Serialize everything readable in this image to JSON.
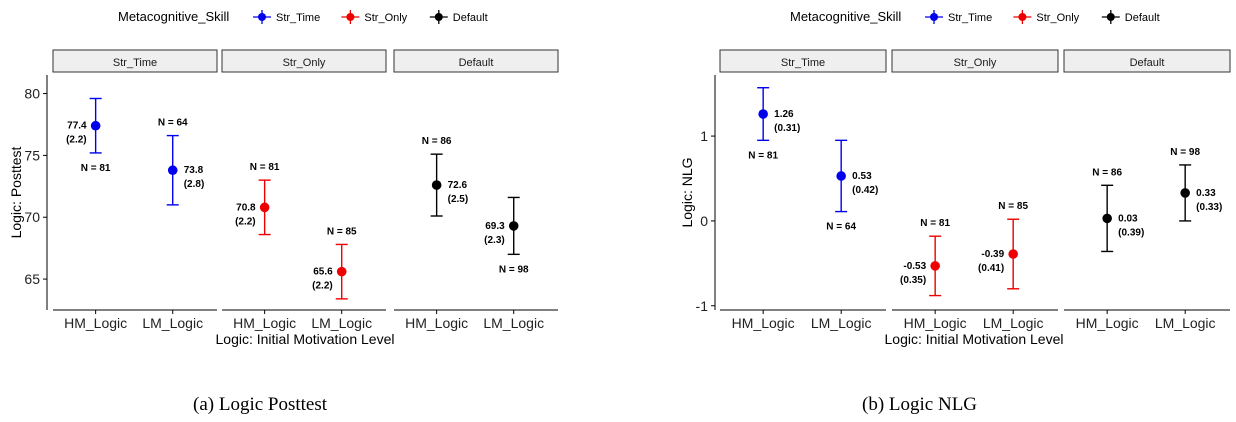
{
  "captions": {
    "left": "(a)  Logic Posttest",
    "right": "(b)  Logic NLG"
  },
  "legend": {
    "title": "Metacognitive_Skill",
    "items": [
      {
        "label": "Str_Time",
        "color": "#0000ee"
      },
      {
        "label": "Str_Only",
        "color": "#ee0000"
      },
      {
        "label": "Default",
        "color": "#000000"
      }
    ]
  },
  "chart_data": [
    {
      "type": "scatter",
      "subtype": "point-with-error-bars, faceted",
      "xlabel": "Logic: Initial Motivation Level",
      "ylabel": "Logic: Posttest",
      "ylim": [
        62.5,
        81.5
      ],
      "yticks": [
        65,
        70,
        75,
        80
      ],
      "facets": [
        {
          "name": "Str_Time",
          "color": "#0000ee",
          "points": [
            {
              "x": "HM_Logic",
              "y": 77.4,
              "lo": 75.2,
              "hi": 79.6,
              "value_label": "77.4",
              "se_label": "(2.2)",
              "n_label": "N = 81",
              "label_side": "left",
              "n_side": "below"
            },
            {
              "x": "LM_Logic",
              "y": 73.8,
              "lo": 71.0,
              "hi": 76.6,
              "value_label": "73.8",
              "se_label": "(2.8)",
              "n_label": "N = 64",
              "label_side": "right",
              "n_side": "above"
            }
          ]
        },
        {
          "name": "Str_Only",
          "color": "#ee0000",
          "points": [
            {
              "x": "HM_Logic",
              "y": 70.8,
              "lo": 68.6,
              "hi": 73.0,
              "value_label": "70.8",
              "se_label": "(2.2)",
              "n_label": "N = 81",
              "label_side": "left",
              "n_side": "above"
            },
            {
              "x": "LM_Logic",
              "y": 65.6,
              "lo": 63.4,
              "hi": 67.8,
              "value_label": "65.6",
              "se_label": "(2.2)",
              "n_label": "N = 85",
              "label_side": "left",
              "n_side": "above"
            }
          ]
        },
        {
          "name": "Default",
          "color": "#000000",
          "points": [
            {
              "x": "HM_Logic",
              "y": 72.6,
              "lo": 70.1,
              "hi": 75.1,
              "value_label": "72.6",
              "se_label": "(2.5)",
              "n_label": "N = 86",
              "label_side": "right",
              "n_side": "above"
            },
            {
              "x": "LM_Logic",
              "y": 69.3,
              "lo": 67.0,
              "hi": 71.6,
              "value_label": "69.3",
              "se_label": "(2.3)",
              "n_label": "N = 98",
              "label_side": "left",
              "n_side": "below"
            }
          ]
        }
      ]
    },
    {
      "type": "scatter",
      "subtype": "point-with-error-bars, faceted",
      "xlabel": "Logic: Initial Motivation Level",
      "ylabel": "Logic: NLG",
      "ylim": [
        -1.05,
        1.72
      ],
      "yticks": [
        -1,
        0,
        1
      ],
      "facets": [
        {
          "name": "Str_Time",
          "color": "#0000ee",
          "points": [
            {
              "x": "HM_Logic",
              "y": 1.26,
              "lo": 0.95,
              "hi": 1.57,
              "value_label": "1.26",
              "se_label": "(0.31)",
              "n_label": "N = 81",
              "label_side": "right",
              "n_side": "below"
            },
            {
              "x": "LM_Logic",
              "y": 0.53,
              "lo": 0.11,
              "hi": 0.95,
              "value_label": "0.53",
              "se_label": "(0.42)",
              "n_label": "N = 64",
              "label_side": "right",
              "n_side": "below"
            }
          ]
        },
        {
          "name": "Str_Only",
          "color": "#ee0000",
          "points": [
            {
              "x": "HM_Logic",
              "y": -0.53,
              "lo": -0.88,
              "hi": -0.18,
              "value_label": "-0.53",
              "se_label": "(0.35)",
              "n_label": "N = 81",
              "label_side": "left",
              "n_side": "above"
            },
            {
              "x": "LM_Logic",
              "y": -0.39,
              "lo": -0.8,
              "hi": 0.02,
              "value_label": "-0.39",
              "se_label": "(0.41)",
              "n_label": "N = 85",
              "label_side": "left",
              "n_side": "above"
            }
          ]
        },
        {
          "name": "Default",
          "color": "#000000",
          "points": [
            {
              "x": "HM_Logic",
              "y": 0.03,
              "lo": -0.36,
              "hi": 0.42,
              "value_label": "0.03",
              "se_label": "(0.39)",
              "n_label": "N = 86",
              "label_side": "right",
              "n_side": "above"
            },
            {
              "x": "LM_Logic",
              "y": 0.33,
              "lo": 0.0,
              "hi": 0.66,
              "value_label": "0.33",
              "se_label": "(0.33)",
              "n_label": "N = 98",
              "label_side": "right",
              "n_side": "above"
            }
          ]
        }
      ]
    }
  ]
}
